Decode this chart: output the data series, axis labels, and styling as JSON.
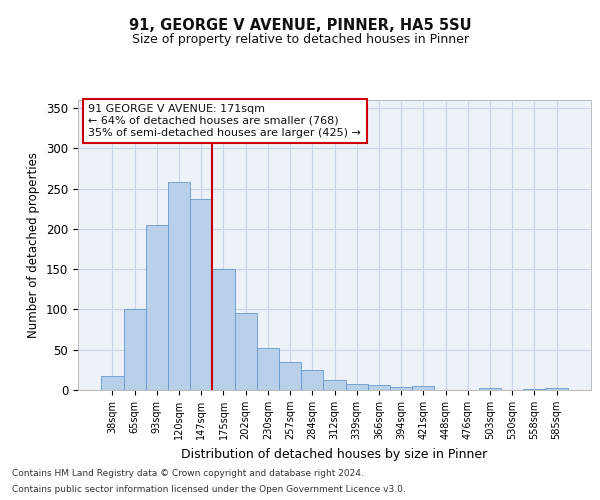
{
  "title1": "91, GEORGE V AVENUE, PINNER, HA5 5SU",
  "title2": "Size of property relative to detached houses in Pinner",
  "xlabel": "Distribution of detached houses by size in Pinner",
  "ylabel": "Number of detached properties",
  "annotation_line1": "91 GEORGE V AVENUE: 171sqm",
  "annotation_line2": "← 64% of detached houses are smaller (768)",
  "annotation_line3": "35% of semi-detached houses are larger (425) →",
  "footnote1": "Contains HM Land Registry data © Crown copyright and database right 2024.",
  "footnote2": "Contains public sector information licensed under the Open Government Licence v3.0.",
  "bar_labels": [
    "38sqm",
    "65sqm",
    "93sqm",
    "120sqm",
    "147sqm",
    "175sqm",
    "202sqm",
    "230sqm",
    "257sqm",
    "284sqm",
    "312sqm",
    "339sqm",
    "366sqm",
    "394sqm",
    "421sqm",
    "448sqm",
    "476sqm",
    "503sqm",
    "530sqm",
    "558sqm",
    "585sqm"
  ],
  "bar_heights": [
    18,
    100,
    205,
    258,
    237,
    150,
    95,
    52,
    35,
    25,
    13,
    8,
    6,
    4,
    5,
    0,
    0,
    2,
    0,
    1,
    2
  ],
  "bar_color": "#b8d0ea",
  "bar_edge_color": "#6699cc",
  "grid_color": "#c8d4e8",
  "bg_color": "#edf1f8",
  "vline_color": "#cc0000",
  "annotation_box_facecolor": "#ffffff",
  "annotation_box_edgecolor": "#cc0000",
  "ylim": [
    0,
    360
  ],
  "yticks": [
    0,
    50,
    100,
    150,
    200,
    250,
    300,
    350
  ],
  "vline_index": 5
}
